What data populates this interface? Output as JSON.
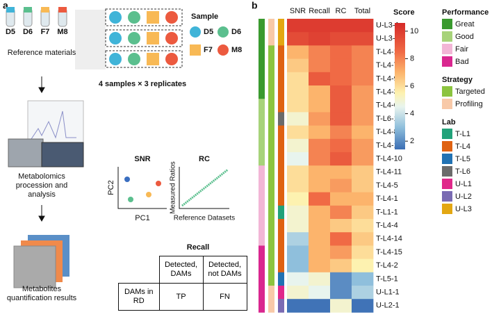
{
  "panel_a": {
    "label": "a",
    "tubes": [
      "D5",
      "D6",
      "F7",
      "M8"
    ],
    "reference_materials": "Reference materials",
    "sample_legend": {
      "title": "Sample",
      "items": [
        "D5",
        "D6",
        "F7",
        "M8"
      ]
    },
    "replicates": "4 samples × 3 replicates",
    "processing": "Metabolomics procession and analysis",
    "results": "Metabolites quantification results",
    "snr": {
      "title": "SNR",
      "ylabel": "PC2",
      "xlabel": "PC1"
    },
    "rc": {
      "title": "RC",
      "ylabel": "Measured Ratios",
      "xlabel": "Reference Datasets"
    },
    "recall": {
      "title": "Recall",
      "header": [
        "Detected, DAMs",
        "Detected, not DAMs"
      ],
      "row_label": "DAMs in RD",
      "cells": [
        "TP",
        "FN"
      ]
    }
  },
  "chart_data": {
    "type": "heatmap",
    "label": "b",
    "columns": [
      "SNR",
      "Recall",
      "RC",
      "Total"
    ],
    "rows": [
      "U-L3-1",
      "U-L3-2",
      "T-L4-13",
      "T-L4-7",
      "T-L4-9",
      "T-L4-3",
      "T-L4-6",
      "T-L6-1",
      "T-L4-8",
      "T-L4-12",
      "T-L4-10",
      "T-L4-11",
      "T-L4-5",
      "T-L4-1",
      "T-L1-1",
      "T-L4-4",
      "T-L4-14",
      "T-L4-15",
      "T-L4-2",
      "T-L5-1",
      "U-L1-1",
      "U-L2-1"
    ],
    "values": [
      [
        10,
        10,
        10,
        10
      ],
      [
        9.5,
        9.8,
        9.5,
        9.5
      ],
      [
        7,
        8,
        8.5,
        8
      ],
      [
        6.5,
        8,
        8.5,
        8
      ],
      [
        6,
        9,
        8.5,
        8
      ],
      [
        6,
        7,
        9,
        7.5
      ],
      [
        6,
        7,
        9,
        7.5
      ],
      [
        5,
        7.5,
        9,
        7.5
      ],
      [
        6,
        7,
        8,
        7
      ],
      [
        5,
        8,
        8.5,
        7.5
      ],
      [
        4.5,
        8,
        9,
        7.5
      ],
      [
        6,
        7,
        7,
        6.5
      ],
      [
        6,
        7,
        7.5,
        6.5
      ],
      [
        5.5,
        8.5,
        7,
        7
      ],
      [
        5,
        7,
        8,
        6.5
      ],
      [
        5,
        7,
        6.5,
        6
      ],
      [
        3.5,
        7,
        8.5,
        6.5
      ],
      [
        3,
        7,
        7.5,
        6
      ],
      [
        3,
        7,
        6.5,
        5.5
      ],
      [
        4.5,
        5,
        2,
        3
      ],
      [
        5,
        4.5,
        2,
        3.5
      ],
      [
        1.5,
        1.5,
        5,
        1.5
      ]
    ],
    "colorbar": {
      "title": "Score",
      "clim": [
        1.4,
        10.6
      ],
      "ticks": [
        2,
        4,
        6,
        8,
        10
      ],
      "colors": [
        [
          1.4,
          "#3b6eb4"
        ],
        [
          3,
          "#8fbfdc"
        ],
        [
          4.5,
          "#e8f4ee"
        ],
        [
          5.5,
          "#fdf2b0"
        ],
        [
          7,
          "#fcb46c"
        ],
        [
          8.5,
          "#f06a45"
        ],
        [
          10.6,
          "#d52a28"
        ]
      ]
    },
    "tracks": [
      {
        "title": "Performance",
        "legend": [
          {
            "name": "Great",
            "color": "#3a9a2f"
          },
          {
            "name": "Good",
            "color": "#a7d37a"
          },
          {
            "name": "Fair",
            "color": "#f2b6d6"
          },
          {
            "name": "Bad",
            "color": "#d9278f"
          }
        ],
        "values": [
          "Great",
          "Great",
          "Great",
          "Great",
          "Great",
          "Great",
          "Good",
          "Good",
          "Good",
          "Good",
          "Good",
          "Fair",
          "Fair",
          "Fair",
          "Fair",
          "Fair",
          "Fair",
          "Bad",
          "Bad",
          "Bad",
          "Bad",
          "Bad"
        ]
      },
      {
        "title": "Strategy",
        "legend": [
          {
            "name": "Targeted",
            "color": "#8cc43f"
          },
          {
            "name": "Profiling",
            "color": "#f8c9a8"
          }
        ],
        "values": [
          "Profiling",
          "Profiling",
          "Targeted",
          "Targeted",
          "Targeted",
          "Targeted",
          "Targeted",
          "Targeted",
          "Targeted",
          "Targeted",
          "Targeted",
          "Targeted",
          "Targeted",
          "Targeted",
          "Targeted",
          "Targeted",
          "Targeted",
          "Targeted",
          "Targeted",
          "Targeted",
          "Profiling",
          "Profiling"
        ]
      },
      {
        "title": "Lab",
        "legend": [
          {
            "name": "T-L1",
            "color": "#22a27a"
          },
          {
            "name": "T-L4",
            "color": "#df6212"
          },
          {
            "name": "T-L5",
            "color": "#2172b3"
          },
          {
            "name": "T-L6",
            "color": "#6b6b6b"
          },
          {
            "name": "U-L1",
            "color": "#e0288a"
          },
          {
            "name": "U-L2",
            "color": "#7a6bb3"
          },
          {
            "name": "U-L3",
            "color": "#e3a712"
          }
        ],
        "values": [
          "U-L3",
          "U-L3",
          "T-L4",
          "T-L4",
          "T-L4",
          "T-L4",
          "T-L4",
          "T-L6",
          "T-L4",
          "T-L4",
          "T-L4",
          "T-L4",
          "T-L4",
          "T-L4",
          "T-L1",
          "T-L4",
          "T-L4",
          "T-L4",
          "T-L4",
          "T-L5",
          "U-L1",
          "U-L2"
        ]
      }
    ]
  }
}
